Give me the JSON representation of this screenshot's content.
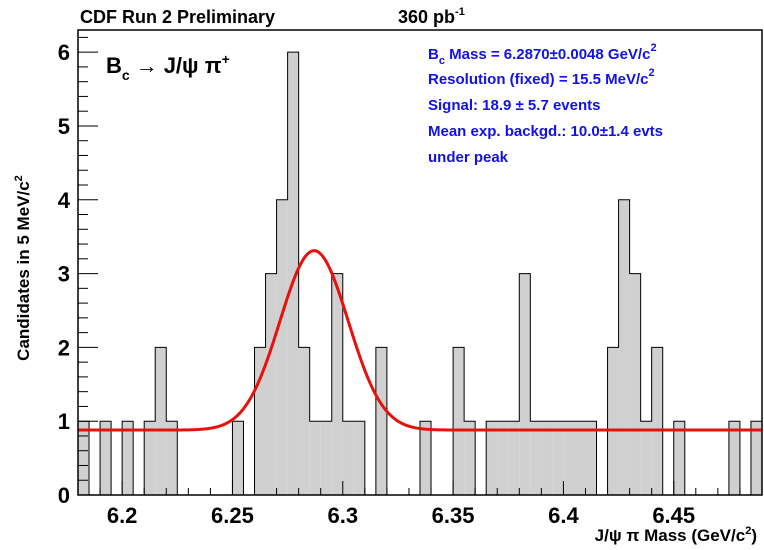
{
  "header": {
    "experiment": "CDF Run 2 Preliminary",
    "luminosity_value": "360 pb",
    "luminosity_exp": "-1"
  },
  "decay_label": {
    "particle": "B",
    "particle_sub": "c",
    "arrow": "→",
    "products": "J/ψ π",
    "products_sup": "+"
  },
  "fit_info": {
    "line1_prefix": "B",
    "line1_sub": "c",
    "line1_text": " Mass = 6.2870±0.0048 GeV/c",
    "line1_sup": "2",
    "line2_text": "Resolution (fixed) = 15.5 MeV/c",
    "line2_sup": "2",
    "line3": "Signal: 18.9 ± 5.7 events",
    "line4": "Mean exp. backgd.: 10.0±1.4 evts",
    "line5": "under peak"
  },
  "axes": {
    "ylabel_text": "Candidates in 5 MeV/c",
    "ylabel_sup": "2",
    "xlabel_text": "J/ψ π Mass (GeV/c",
    "xlabel_sup": "2",
    "xlabel_close": ")"
  },
  "chart_data": {
    "type": "bar",
    "bin_width": 0.005,
    "bin_edges_start": 6.18,
    "counts": [
      1,
      0,
      1,
      0,
      1,
      0,
      1,
      2,
      1,
      0,
      0,
      0,
      0,
      0,
      1,
      0,
      2,
      3,
      4,
      6,
      2,
      1,
      1,
      3,
      1,
      1,
      0,
      2,
      0,
      0,
      0,
      1,
      0,
      0,
      2,
      1,
      0,
      1,
      1,
      1,
      3,
      1,
      1,
      1,
      1,
      1,
      1,
      0,
      2,
      4,
      3,
      1,
      2,
      0,
      1,
      0,
      0,
      0,
      0,
      1,
      0,
      1
    ],
    "x": [
      6.1825,
      6.1875,
      6.1925,
      6.1975,
      6.2025,
      6.2075,
      6.2125,
      6.2175,
      6.2225,
      6.2275,
      6.2325,
      6.2375,
      6.2425,
      6.2475,
      6.2525,
      6.2575,
      6.2625,
      6.2675,
      6.2725,
      6.2775,
      6.2825,
      6.2875,
      6.2925,
      6.2975,
      6.3025,
      6.3075,
      6.3125,
      6.3175,
      6.3225,
      6.3275,
      6.3325,
      6.3375,
      6.3425,
      6.3475,
      6.3525,
      6.3575,
      6.3625,
      6.3675,
      6.3725,
      6.3775,
      6.3825,
      6.3875,
      6.3925,
      6.3975,
      6.4025,
      6.4075,
      6.4125,
      6.4175,
      6.4225,
      6.4275,
      6.4325,
      6.4375,
      6.4425,
      6.4475,
      6.4525,
      6.4575,
      6.4625,
      6.4675,
      6.4725,
      6.4775,
      6.4825,
      6.4875
    ],
    "xlim": [
      6.18,
      6.49
    ],
    "ylim": [
      0,
      6.3
    ],
    "xticks": [
      6.2,
      6.25,
      6.3,
      6.35,
      6.4,
      6.45
    ],
    "xtick_labels": [
      "6.2",
      "6.25",
      "6.3",
      "6.35",
      "6.4",
      "6.45"
    ],
    "yticks": [
      0,
      1,
      2,
      3,
      4,
      5,
      6
    ],
    "ytick_labels": [
      "0",
      "1",
      "2",
      "3",
      "4",
      "5",
      "6"
    ],
    "fit_curve": {
      "type": "gaussian_plus_flat",
      "mean": 6.287,
      "sigma": 0.0155,
      "amplitude": 2.43,
      "baseline": 0.88
    },
    "colors": {
      "histogram_fill": "#d0d0d0",
      "histogram_line": "#000000",
      "fit_line": "#e8100c",
      "info_text": "#1010f0"
    },
    "grid": false
  }
}
